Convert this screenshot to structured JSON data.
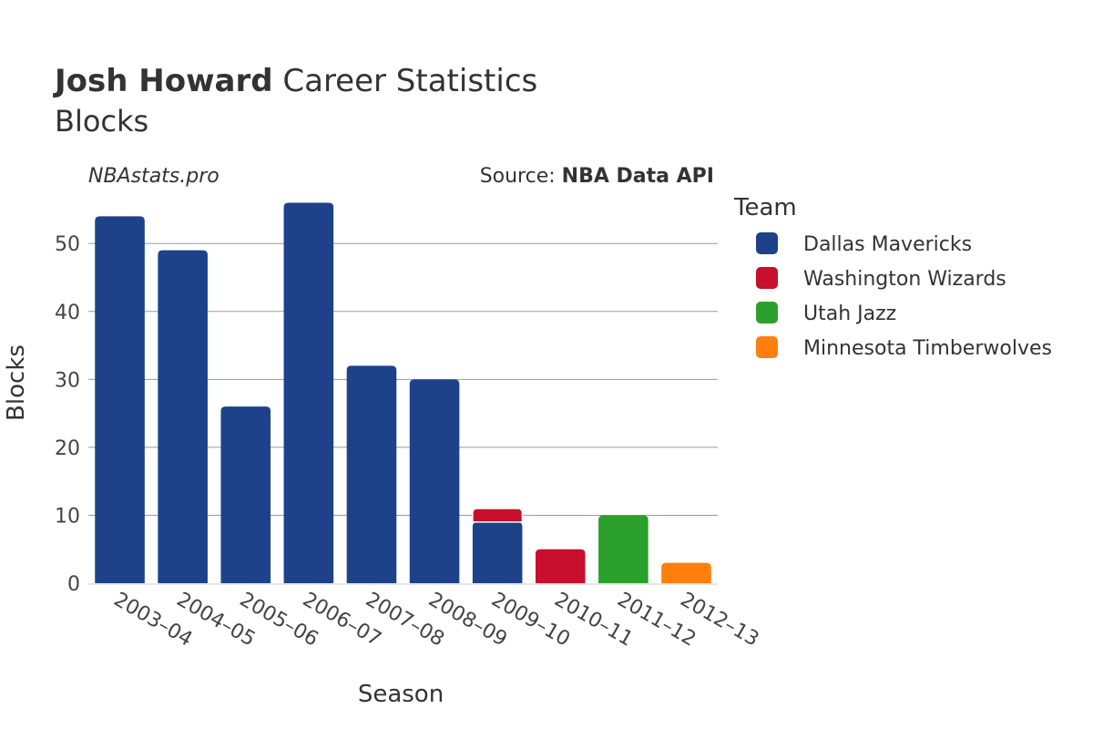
{
  "header": {
    "title_bold": "Josh Howard",
    "title_rest": " Career Statistics",
    "subtitle": "Blocks"
  },
  "credits": {
    "left": "NBAstats.pro",
    "source_prefix": "Source: ",
    "source_name": "NBA Data API"
  },
  "legend": {
    "title": "Team",
    "items": [
      {
        "label": "Dallas Mavericks",
        "color": "#1d428a"
      },
      {
        "label": "Washington Wizards",
        "color": "#c8102e"
      },
      {
        "label": "Utah Jazz",
        "color": "#2ca02c"
      },
      {
        "label": "Minnesota Timberwolves",
        "color": "#ff7f0e"
      }
    ]
  },
  "chart_data": {
    "type": "bar",
    "stacked": true,
    "xlabel": "Season",
    "ylabel": "Blocks",
    "ylim": [
      0,
      57
    ],
    "yticks": [
      0,
      10,
      20,
      30,
      40,
      50
    ],
    "grid": true,
    "legend_position": "right",
    "categories": [
      "2003–04",
      "2004–05",
      "2005–06",
      "2006–07",
      "2007–08",
      "2008–09",
      "2009–10",
      "2010–11",
      "2011–12",
      "2012–13"
    ],
    "series": [
      {
        "name": "Dallas Mavericks",
        "color": "#1d428a",
        "values": [
          54,
          49,
          26,
          56,
          32,
          30,
          9,
          0,
          0,
          0
        ]
      },
      {
        "name": "Washington Wizards",
        "color": "#c8102e",
        "values": [
          0,
          0,
          0,
          0,
          0,
          0,
          2,
          5,
          0,
          0
        ]
      },
      {
        "name": "Utah Jazz",
        "color": "#2ca02c",
        "values": [
          0,
          0,
          0,
          0,
          0,
          0,
          0,
          0,
          10,
          0
        ]
      },
      {
        "name": "Minnesota Timberwolves",
        "color": "#ff7f0e",
        "values": [
          0,
          0,
          0,
          0,
          0,
          0,
          0,
          0,
          0,
          3
        ]
      }
    ]
  }
}
